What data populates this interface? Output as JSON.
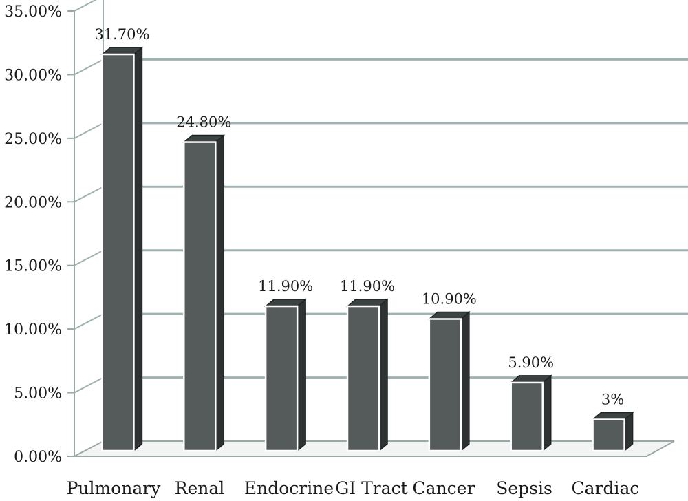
{
  "chart_data": {
    "type": "bar",
    "categories": [
      "Pulmonary",
      "Renal",
      "Endocrine",
      "GI Tract",
      "Cancer",
      "Sepsis",
      "Cardiac"
    ],
    "values": [
      31.7,
      24.8,
      11.9,
      11.9,
      10.9,
      5.9,
      3
    ],
    "data_labels": [
      "31.70%",
      "24.80%",
      "11.90%",
      "11.90%",
      "10.90%",
      "5.90%",
      "3%"
    ],
    "y_ticks": [
      "0.00%",
      "5.00%",
      "10.00%",
      "15.00%",
      "20.00%",
      "25.00%",
      "30.00%",
      "35.00%"
    ],
    "ylim": [
      0,
      35
    ],
    "grid": true,
    "legend": "none",
    "title": "",
    "xlabel": "",
    "ylabel": "",
    "colors": {
      "bar_front": "#555a5a",
      "bar_side": "#2e3232",
      "bar_top": "#3c4141",
      "grid": "#9fb1b1",
      "axis": "#9aa8a8"
    }
  }
}
